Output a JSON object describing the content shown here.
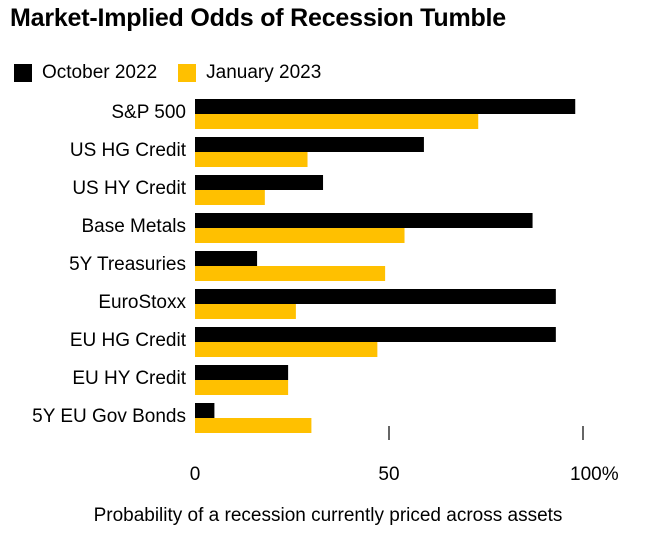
{
  "chart_data": {
    "type": "bar",
    "orientation": "horizontal",
    "title": "Market-Implied Odds of Recession Tumble",
    "categories": [
      "S&P 500",
      "US HG Credit",
      "US HY Credit",
      "Base Metals",
      "5Y Treasuries",
      "EuroStoxx",
      "EU HG Credit",
      "EU HY Credit",
      "5Y EU Gov Bonds"
    ],
    "series": [
      {
        "name": "October 2022",
        "color": "#000000",
        "values": [
          98,
          59,
          33,
          87,
          16,
          93,
          93,
          24,
          5
        ]
      },
      {
        "name": "January 2023",
        "color": "#ffc000",
        "values": [
          73,
          29,
          18,
          54,
          49,
          26,
          47,
          24,
          30
        ]
      }
    ],
    "xlim": [
      0,
      100
    ],
    "xticks": [
      0,
      50,
      100
    ],
    "xtick_labels": [
      "0",
      "50",
      "100%"
    ],
    "xlabel": "Probability of a recession currently priced across assets",
    "ylabel": "",
    "legend_position": "top-left"
  }
}
